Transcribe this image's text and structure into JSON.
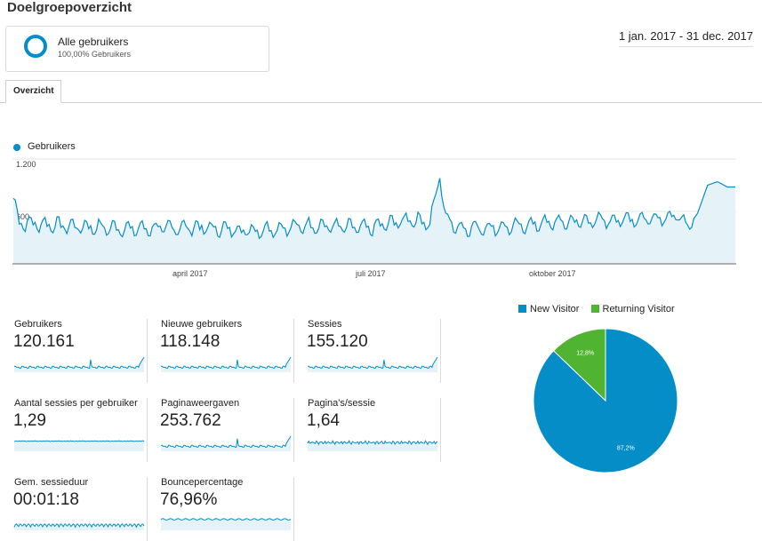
{
  "header": {
    "title": "Doelgroepoverzicht",
    "date_range": "1 jan. 2017 - 31 dec. 2017"
  },
  "segment": {
    "name": "Alle gebruikers",
    "subtitle": "100,00% Gebruikers"
  },
  "tabs": [
    {
      "label": "Overzicht"
    }
  ],
  "colors": {
    "accent": "#058dc7",
    "returning": "#50b432",
    "area_fill": "#e5f3f9"
  },
  "chart_data": [
    {
      "type": "area",
      "series": [
        {
          "name": "Gebruikers"
        }
      ],
      "x_tick_labels": [
        "april 2017",
        "juli 2017",
        "oktober 2017"
      ],
      "y_tick_labels": [
        "1.200",
        "600"
      ],
      "ylim": [
        0,
        1200
      ],
      "grid": true,
      "legend": "top-left",
      "note_keypoints": [
        [
          0,
          750
        ],
        [
          3,
          470
        ],
        [
          30,
          430
        ],
        [
          60,
          400
        ],
        [
          90,
          420
        ],
        [
          120,
          380
        ],
        [
          150,
          440
        ],
        [
          180,
          410
        ],
        [
          185,
          440
        ],
        [
          200,
          510
        ],
        [
          210,
          470
        ],
        [
          215,
          980
        ],
        [
          218,
          520
        ],
        [
          225,
          410
        ],
        [
          250,
          420
        ],
        [
          270,
          470
        ],
        [
          300,
          500
        ],
        [
          320,
          520
        ],
        [
          335,
          550
        ],
        [
          340,
          420
        ],
        [
          345,
          580
        ],
        [
          350,
          900
        ],
        [
          355,
          940
        ],
        [
          360,
          880
        ]
      ]
    },
    {
      "type": "pie",
      "slices": [
        {
          "label": "New Visitor",
          "value": 87.2,
          "label_text": "87,2%",
          "color": "#058dc7"
        },
        {
          "label": "Returning Visitor",
          "value": 12.8,
          "label_text": "12,8%",
          "color": "#50b432"
        }
      ],
      "legend": "top"
    }
  ],
  "metrics": [
    {
      "label": "Gebruikers",
      "value": "120.161"
    },
    {
      "label": "Nieuwe gebruikers",
      "value": "118.148"
    },
    {
      "label": "Sessies",
      "value": "155.120"
    },
    {
      "label": "Aantal sessies per gebruiker",
      "value": "1,29"
    },
    {
      "label": "Paginaweergaven",
      "value": "253.762"
    },
    {
      "label": "Pagina's/sessie",
      "value": "1,64"
    },
    {
      "label": "Gem. sessieduur",
      "value": "00:01:18"
    },
    {
      "label": "Bouncepercentage",
      "value": "76,96%"
    }
  ]
}
